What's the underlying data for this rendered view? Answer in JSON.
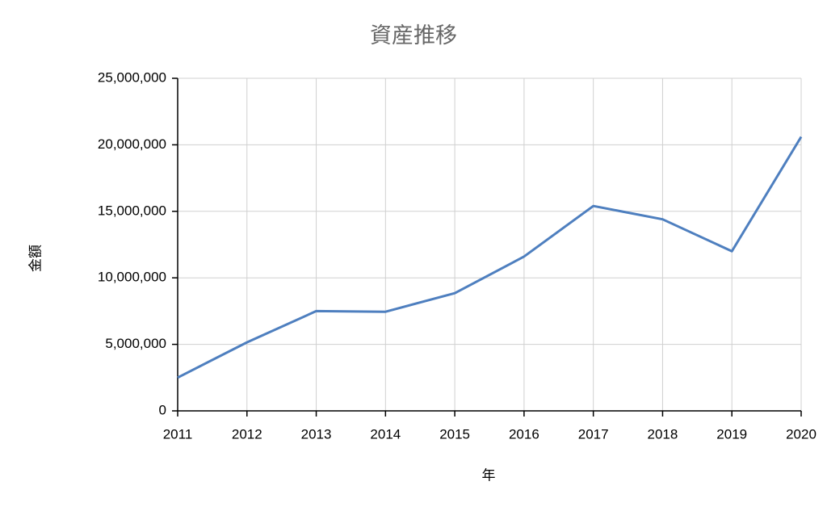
{
  "chart_data": {
    "type": "line",
    "title": "資産推移",
    "xlabel": "年",
    "ylabel": "金額",
    "x": [
      2011,
      2012,
      2013,
      2014,
      2015,
      2016,
      2017,
      2018,
      2019,
      2020
    ],
    "series": [
      {
        "color": "#4e7fbf",
        "values": [
          2500000,
          5150000,
          7500000,
          7450000,
          8850000,
          11600000,
          15400000,
          14400000,
          12000000,
          20600000
        ]
      }
    ],
    "xlim": [
      2011,
      2020
    ],
    "xticks": [
      2011,
      2012,
      2013,
      2014,
      2015,
      2016,
      2017,
      2018,
      2019,
      2020
    ],
    "ylim": [
      0,
      25000000
    ],
    "yticks": [
      0,
      {
        "value": 5000000,
        "label": "5,000,000"
      },
      {
        "value": 10000000,
        "label": "10,000,000"
      },
      {
        "value": 15000000,
        "label": "15,000,000"
      },
      {
        "value": 20000000,
        "label": "20,000,000"
      },
      {
        "value": 25000000,
        "label": "25,000,000"
      }
    ],
    "grid": true
  }
}
